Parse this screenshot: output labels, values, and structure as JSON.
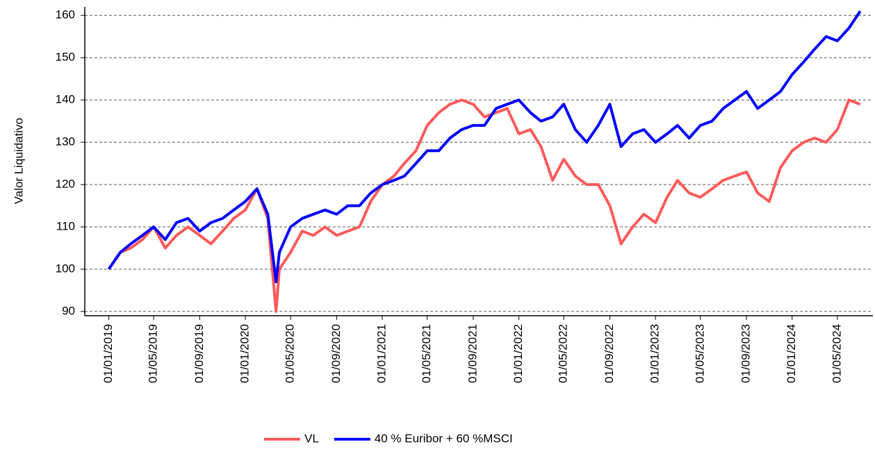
{
  "chart_data": {
    "type": "line",
    "y_label": "Valor Liquidativo",
    "x": [
      "2019-01-01",
      "2019-02-01",
      "2019-03-01",
      "2019-04-01",
      "2019-05-01",
      "2019-06-01",
      "2019-07-01",
      "2019-08-01",
      "2019-09-01",
      "2019-10-01",
      "2019-11-01",
      "2019-12-01",
      "2020-01-01",
      "2020-02-01",
      "2020-03-01",
      "2020-03-23",
      "2020-04-01",
      "2020-05-01",
      "2020-06-01",
      "2020-07-01",
      "2020-08-01",
      "2020-09-01",
      "2020-10-01",
      "2020-11-01",
      "2020-12-01",
      "2021-01-01",
      "2021-02-01",
      "2021-03-01",
      "2021-04-01",
      "2021-05-01",
      "2021-06-01",
      "2021-07-01",
      "2021-08-01",
      "2021-09-01",
      "2021-10-01",
      "2021-11-01",
      "2021-12-01",
      "2022-01-01",
      "2022-02-01",
      "2022-03-01",
      "2022-04-01",
      "2022-05-01",
      "2022-06-01",
      "2022-07-01",
      "2022-08-01",
      "2022-09-01",
      "2022-10-01",
      "2022-11-01",
      "2022-12-01",
      "2023-01-01",
      "2023-02-01",
      "2023-03-01",
      "2023-04-01",
      "2023-05-01",
      "2023-06-01",
      "2023-07-01",
      "2023-08-01",
      "2023-09-01",
      "2023-10-01",
      "2023-11-01",
      "2023-12-01",
      "2024-01-01",
      "2024-02-01",
      "2024-03-01",
      "2024-04-01",
      "2024-05-01",
      "2024-06-01",
      "2024-07-01"
    ],
    "series": [
      {
        "name": "VL",
        "color": "#ff5a5a",
        "values": [
          100,
          104,
          105,
          107,
          110,
          105,
          108,
          110,
          108,
          106,
          109,
          112,
          114,
          119,
          112,
          90,
          100,
          104,
          109,
          108,
          110,
          108,
          109,
          110,
          116,
          120,
          122,
          125,
          128,
          134,
          137,
          139,
          140,
          139,
          136,
          137,
          138,
          132,
          133,
          129,
          121,
          126,
          122,
          120,
          120,
          115,
          106,
          110,
          113,
          111,
          117,
          121,
          118,
          117,
          119,
          121,
          122,
          123,
          118,
          116,
          124,
          128,
          130,
          131,
          130,
          133,
          140,
          139
        ]
      },
      {
        "name": "40 % Euribor + 60 %MSCI",
        "color": "#0000ff",
        "values": [
          100,
          104,
          106,
          108,
          110,
          107,
          111,
          112,
          109,
          111,
          112,
          114,
          116,
          119,
          113,
          97,
          104,
          110,
          112,
          113,
          114,
          113,
          115,
          115,
          118,
          120,
          121,
          122,
          125,
          128,
          128,
          131,
          133,
          134,
          134,
          138,
          139,
          140,
          137,
          135,
          136,
          139,
          133,
          130,
          134,
          139,
          129,
          132,
          133,
          130,
          132,
          134,
          131,
          134,
          135,
          138,
          140,
          142,
          138,
          140,
          142,
          146,
          149,
          152,
          155,
          154,
          157,
          161
        ]
      }
    ],
    "xlim": [
      "2018-10-29",
      "2024-08-04"
    ],
    "xticks": [
      {
        "value": "2019-01-01",
        "label": "01/01/2019"
      },
      {
        "value": "2019-05-01",
        "label": "01/05/2019"
      },
      {
        "value": "2019-09-01",
        "label": "01/09/2019"
      },
      {
        "value": "2020-01-01",
        "label": "01/01/2020"
      },
      {
        "value": "2020-05-01",
        "label": "01/05/2020"
      },
      {
        "value": "2020-09-01",
        "label": "01/09/2020"
      },
      {
        "value": "2021-01-01",
        "label": "01/01/2021"
      },
      {
        "value": "2021-05-01",
        "label": "01/05/2021"
      },
      {
        "value": "2021-09-01",
        "label": "01/09/2021"
      },
      {
        "value": "2022-01-01",
        "label": "01/01/2022"
      },
      {
        "value": "2022-05-01",
        "label": "01/05/2022"
      },
      {
        "value": "2022-09-01",
        "label": "01/09/2022"
      },
      {
        "value": "2023-01-01",
        "label": "01/01/2023"
      },
      {
        "value": "2023-05-01",
        "label": "01/05/2023"
      },
      {
        "value": "2023-09-01",
        "label": "01/09/2023"
      },
      {
        "value": "2024-01-01",
        "label": "01/01/2024"
      },
      {
        "value": "2024-05-01",
        "label": "01/05/2024"
      }
    ],
    "ylim": [
      89,
      162
    ],
    "yticks": [
      90,
      100,
      110,
      120,
      130,
      140,
      150,
      160
    ],
    "grid": true,
    "legend": "bottom"
  }
}
